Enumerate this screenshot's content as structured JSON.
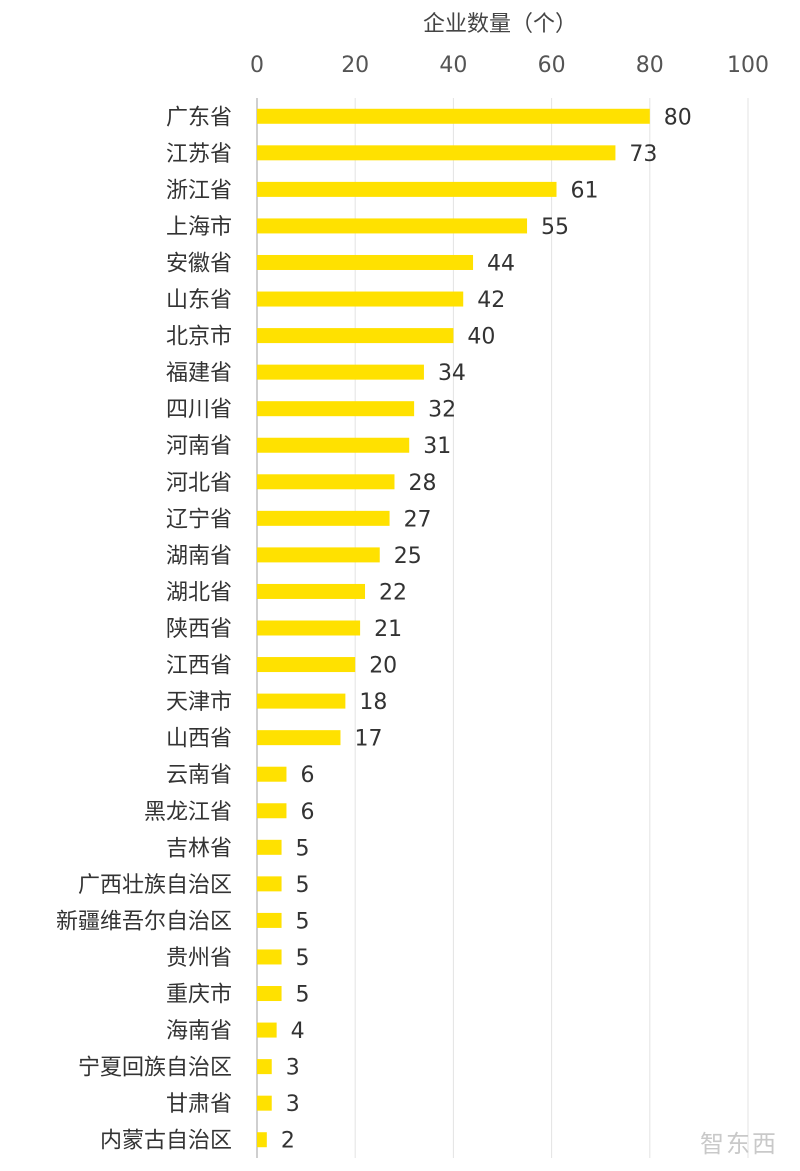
{
  "chart_data": {
    "type": "bar",
    "orientation": "horizontal",
    "title": "",
    "xlabel": "企业数量（个）",
    "ylabel": "",
    "xlim": [
      0,
      100
    ],
    "xticks": [
      "0",
      "20",
      "40",
      "60",
      "80",
      "100"
    ],
    "grid": true,
    "bar_color": "#FFE100",
    "categories": [
      "广东省",
      "江苏省",
      "浙江省",
      "上海市",
      "安徽省",
      "山东省",
      "北京市",
      "福建省",
      "四川省",
      "河南省",
      "河北省",
      "辽宁省",
      "湖南省",
      "湖北省",
      "陕西省",
      "江西省",
      "天津市",
      "山西省",
      "云南省",
      "黑龙江省",
      "吉林省",
      "广西壮族自治区",
      "新疆维吾尔自治区",
      "贵州省",
      "重庆市",
      "海南省",
      "宁夏回族自治区",
      "甘肃省",
      "内蒙古自治区"
    ],
    "values": [
      80,
      73,
      61,
      55,
      44,
      42,
      40,
      34,
      32,
      31,
      28,
      27,
      25,
      22,
      21,
      20,
      18,
      17,
      6,
      6,
      5,
      5,
      5,
      5,
      5,
      4,
      3,
      3,
      2
    ]
  },
  "watermark": "智东西"
}
